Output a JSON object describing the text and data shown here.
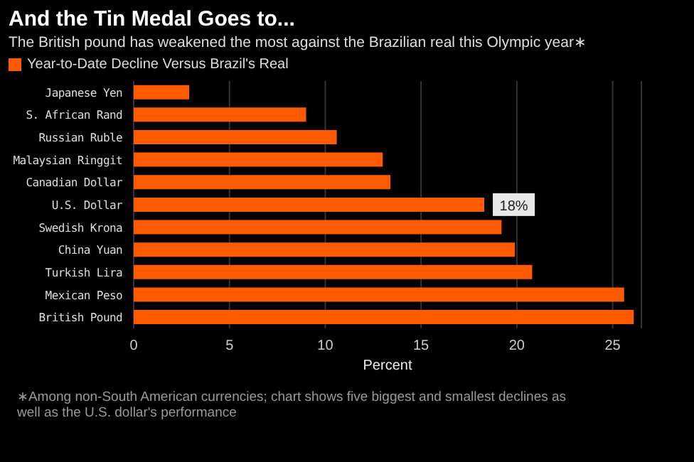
{
  "chart_data": {
    "type": "bar",
    "orientation": "horizontal",
    "title": "And the Tin Medal Goes to...",
    "subtitle": "The British pound has weakened the most against the Brazilian real this Olympic year∗",
    "categories": [
      "Japanese Yen",
      "S. African Rand",
      "Russian Ruble",
      "Malaysian Ringgit",
      "Canadian Dollar",
      "U.S. Dollar",
      "Swedish Krona",
      "China Yuan",
      "Turkish Lira",
      "Mexican Peso",
      "British Pound"
    ],
    "series": [
      {
        "name": "Year-to-Date Decline Versus Brazil's Real",
        "color": "#ff5a00",
        "values": [
          2.9,
          9.0,
          10.6,
          13.0,
          13.4,
          18.3,
          19.2,
          19.9,
          20.8,
          25.6,
          26.1
        ],
        "value_labels": [
          null,
          null,
          null,
          null,
          null,
          "18%",
          null,
          null,
          null,
          null,
          null
        ]
      }
    ],
    "xlim": [
      0,
      26.5
    ],
    "xticks": [
      0,
      5,
      10,
      15,
      20,
      25
    ],
    "xlabel": "Percent",
    "grid": "x",
    "legend": "top left",
    "annotations": [
      "∗Among non-South American currencies; chart shows five biggest and smallest declines as well as the U.S. dollar's performance"
    ]
  }
}
